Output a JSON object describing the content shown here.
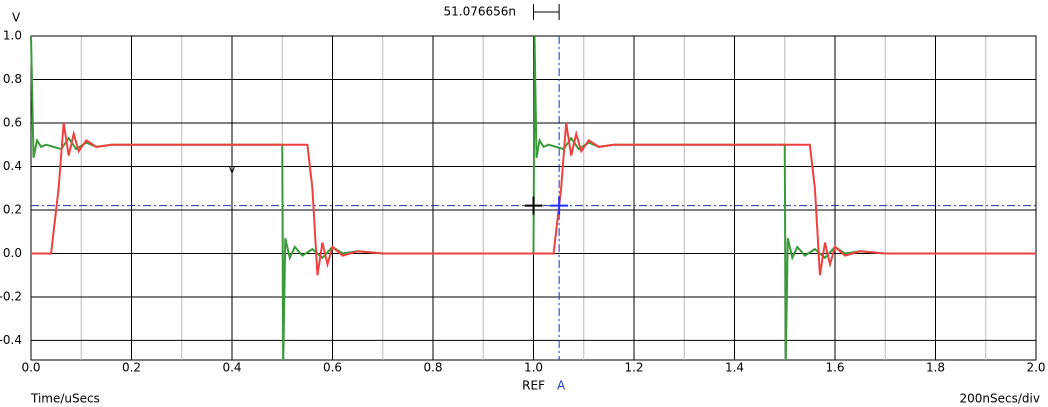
{
  "chart_data": {
    "type": "line",
    "y_label": "V",
    "x_label": "Time/uSecs",
    "scale_label": "200nSecs/div",
    "cursor_delta": "51.076656n",
    "ref_label": "REF",
    "a_label": "A",
    "marker_label": "V",
    "xlim": [
      0,
      2
    ],
    "ylim": [
      -0.49,
      1.0
    ],
    "xticks": [
      {
        "value": 0,
        "label": "0.0"
      },
      0.2,
      0.4,
      0.6,
      0.8,
      {
        "value": 1,
        "label": "1.0"
      },
      1.2,
      1.4,
      1.6,
      1.8,
      {
        "value": 2,
        "label": "2.0"
      }
    ],
    "yticks": [
      -0.4,
      -0.2,
      {
        "value": 0,
        "label": "0.0"
      },
      0.2,
      0.4,
      0.6,
      0.8,
      {
        "value": 1,
        "label": "1.0"
      }
    ],
    "minor_xticks": [
      0.1,
      0.3,
      0.5,
      0.7,
      0.9,
      1.1,
      1.3,
      1.5,
      1.7,
      1.9
    ],
    "grid": true,
    "cursors": {
      "ref": 1.0,
      "a": 1.051,
      "level": 0.22
    },
    "series": [
      {
        "color": "#3a9a3a",
        "x": [
          0,
          0.005,
          0.012,
          0.02,
          0.03,
          0.06,
          0.075,
          0.09,
          0.11,
          0.13,
          0.16,
          0.5,
          0.502,
          0.506,
          0.515,
          0.525,
          0.54,
          0.56,
          0.58,
          0.6,
          0.62,
          0.65,
          0.7,
          1.0,
          1.002,
          1.006,
          1.012,
          1.02,
          1.03,
          1.06,
          1.075,
          1.09,
          1.11,
          1.13,
          1.16,
          1.5,
          1.502,
          1.506,
          1.515,
          1.525,
          1.54,
          1.56,
          1.58,
          1.6,
          1.62,
          1.65,
          1.7,
          2.0
        ],
        "values": [
          1.0,
          0.44,
          0.52,
          0.49,
          0.5,
          0.48,
          0.53,
          0.48,
          0.51,
          0.49,
          0.5,
          0.5,
          -0.49,
          0.07,
          -0.02,
          0.03,
          -0.01,
          0.02,
          -0.02,
          0.03,
          0.0,
          0.01,
          0.0,
          0.0,
          1.0,
          0.44,
          0.52,
          0.49,
          0.5,
          0.48,
          0.53,
          0.48,
          0.51,
          0.49,
          0.5,
          0.5,
          -0.49,
          0.07,
          -0.02,
          0.03,
          -0.01,
          0.02,
          -0.02,
          0.03,
          0.0,
          0.01,
          0.0,
          0.0
        ]
      },
      {
        "color": "#f04040",
        "x": [
          0,
          0.04,
          0.055,
          0.065,
          0.075,
          0.085,
          0.095,
          0.11,
          0.13,
          0.16,
          0.55,
          0.56,
          0.57,
          0.58,
          0.59,
          0.6,
          0.62,
          0.65,
          0.7,
          1.04,
          1.055,
          1.065,
          1.075,
          1.085,
          1.095,
          1.11,
          1.13,
          1.16,
          1.55,
          1.56,
          1.57,
          1.58,
          1.59,
          1.6,
          1.62,
          1.65,
          1.7,
          2.0
        ],
        "values": [
          0.0,
          0.0,
          0.3,
          0.6,
          0.45,
          0.55,
          0.47,
          0.52,
          0.49,
          0.5,
          0.5,
          0.3,
          -0.1,
          0.05,
          -0.05,
          0.03,
          -0.01,
          0.01,
          0.0,
          0.0,
          0.3,
          0.6,
          0.45,
          0.55,
          0.47,
          0.52,
          0.49,
          0.5,
          0.5,
          0.3,
          -0.1,
          0.05,
          -0.05,
          0.03,
          -0.01,
          0.01,
          0.0,
          0.0
        ]
      }
    ]
  }
}
